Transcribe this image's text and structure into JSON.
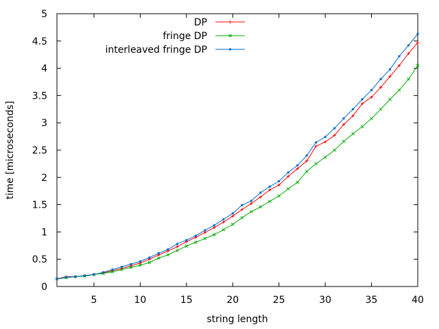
{
  "chart_data": {
    "type": "line",
    "title": "",
    "xlabel": "string length",
    "ylabel": "time [microseconds]",
    "xlim": [
      1,
      40
    ],
    "ylim": [
      0,
      5
    ],
    "xticks": [
      5,
      10,
      15,
      20,
      25,
      30,
      35,
      40
    ],
    "yticks": [
      0,
      0.5,
      1,
      1.5,
      2,
      2.5,
      3,
      3.5,
      4,
      4.5,
      5
    ],
    "ytick_labels": [
      "0",
      "0.5",
      "1",
      "1.5",
      "2",
      "2.5",
      "3",
      "3.5",
      "4",
      "4.5",
      "5"
    ],
    "grid": false,
    "legend_position": "top-right",
    "x": [
      1,
      2,
      3,
      4,
      5,
      6,
      7,
      8,
      9,
      10,
      11,
      12,
      13,
      14,
      15,
      16,
      17,
      18,
      19,
      20,
      21,
      22,
      23,
      24,
      25,
      26,
      27,
      28,
      29,
      30,
      31,
      32,
      33,
      34,
      35,
      36,
      37,
      38,
      39,
      40
    ],
    "series": [
      {
        "name": "DP",
        "color": "#ff0000",
        "marker": "plus",
        "values": [
          0.14,
          0.18,
          0.18,
          0.2,
          0.22,
          0.25,
          0.29,
          0.33,
          0.38,
          0.43,
          0.5,
          0.58,
          0.65,
          0.73,
          0.82,
          0.9,
          0.99,
          1.08,
          1.18,
          1.29,
          1.41,
          1.52,
          1.64,
          1.77,
          1.86,
          2.02,
          2.16,
          2.3,
          2.57,
          2.65,
          2.77,
          2.97,
          3.13,
          3.35,
          3.47,
          3.65,
          3.85,
          4.05,
          4.27,
          4.47
        ]
      },
      {
        "name": "fringe DP",
        "color": "#00aa00",
        "marker": "cross",
        "values": [
          0.14,
          0.16,
          0.18,
          0.19,
          0.22,
          0.24,
          0.27,
          0.31,
          0.35,
          0.39,
          0.44,
          0.52,
          0.58,
          0.66,
          0.74,
          0.81,
          0.88,
          0.95,
          1.04,
          1.14,
          1.26,
          1.37,
          1.46,
          1.56,
          1.66,
          1.79,
          1.91,
          2.11,
          2.25,
          2.37,
          2.5,
          2.66,
          2.8,
          2.93,
          3.08,
          3.25,
          3.43,
          3.6,
          3.8,
          4.05
        ]
      },
      {
        "name": "interleaved fringe DP",
        "color": "#0066cc",
        "marker": "square",
        "values": [
          0.14,
          0.17,
          0.18,
          0.2,
          0.22,
          0.26,
          0.31,
          0.36,
          0.41,
          0.46,
          0.53,
          0.61,
          0.68,
          0.78,
          0.85,
          0.93,
          1.03,
          1.12,
          1.23,
          1.34,
          1.49,
          1.57,
          1.72,
          1.83,
          1.93,
          2.09,
          2.22,
          2.4,
          2.64,
          2.74,
          2.9,
          3.08,
          3.25,
          3.43,
          3.6,
          3.8,
          3.98,
          4.22,
          4.42,
          4.63
        ]
      }
    ]
  }
}
